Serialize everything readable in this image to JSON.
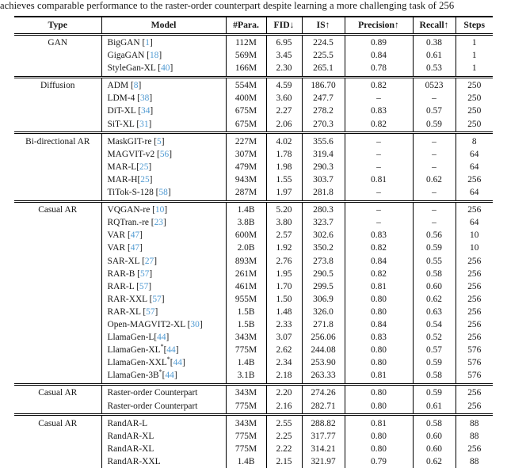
{
  "caption_fragment": "achieves comparable performance to the raster-order counterpart despite learning a more challenging task of 256",
  "colors": {
    "citation": "#4f9ad2",
    "text": "#161616",
    "rule": "#000000"
  },
  "citation_format": {
    "open": "[",
    "close": "]"
  },
  "table": {
    "columns": [
      "Type",
      "Model",
      "#Para.",
      "FID↓",
      "IS↑",
      "Precision↑",
      "Recall↑",
      "Steps"
    ],
    "sections": [
      {
        "type": "GAN",
        "rows": [
          {
            "model": "BigGAN ",
            "cite": "1",
            "para": "112M",
            "fid": "6.95",
            "is": "224.5",
            "prec": "0.89",
            "rec": "0.38",
            "steps": "1"
          },
          {
            "model": "GigaGAN ",
            "cite": "18",
            "para": "569M",
            "fid": "3.45",
            "is": "225.5",
            "prec": "0.84",
            "rec": "0.61",
            "steps": "1"
          },
          {
            "model": "StyleGan-XL ",
            "cite": "40",
            "para": "166M",
            "fid": "2.30",
            "is": "265.1",
            "prec": "0.78",
            "rec": "0.53",
            "steps": "1"
          }
        ]
      },
      {
        "type": "Diffusion",
        "rows": [
          {
            "model": "ADM ",
            "cite": "8",
            "para": "554M",
            "fid": "4.59",
            "is": "186.70",
            "prec": "0.82",
            "rec": "0523",
            "steps": "250"
          },
          {
            "model": "LDM-4 ",
            "cite": "38",
            "para": "400M",
            "fid": "3.60",
            "is": "247.7",
            "prec": "–",
            "rec": "–",
            "steps": "250"
          },
          {
            "model": "DiT-XL ",
            "cite": "34",
            "para": "675M",
            "fid": "2.27",
            "is": "278.2",
            "prec": "0.83",
            "rec": "0.57",
            "steps": "250"
          },
          {
            "model": "SiT-XL ",
            "cite": "31",
            "para": "675M",
            "fid": "2.06",
            "is": "270.3",
            "prec": "0.82",
            "rec": "0.59",
            "steps": "250"
          }
        ]
      },
      {
        "type": "Bi-directional AR",
        "rows": [
          {
            "model": "MaskGIT-re ",
            "cite": "5",
            "para": "227M",
            "fid": "4.02",
            "is": "355.6",
            "prec": "–",
            "rec": "–",
            "steps": "8"
          },
          {
            "model": "MAGVIT-v2 ",
            "cite": "56",
            "para": "307M",
            "fid": "1.78",
            "is": "319.4",
            "prec": "–",
            "rec": "–",
            "steps": "64"
          },
          {
            "model": "MAR-L",
            "cite": "25",
            "para": "479M",
            "fid": "1.98",
            "is": "290.3",
            "prec": "–",
            "rec": "–",
            "steps": "64"
          },
          {
            "model": "MAR-H",
            "cite": "25",
            "para": "943M",
            "fid": "1.55",
            "is": "303.7",
            "prec": "0.81",
            "rec": "0.62",
            "steps": "256"
          },
          {
            "model": "TiTok-S-128 ",
            "cite": "58",
            "para": "287M",
            "fid": "1.97",
            "is": "281.8",
            "prec": "–",
            "rec": "–",
            "steps": "64"
          }
        ]
      },
      {
        "type": "Casual AR",
        "rows": [
          {
            "model": "VQGAN-re ",
            "cite": "10",
            "para": "1.4B",
            "fid": "5.20",
            "is": "280.3",
            "prec": "–",
            "rec": "–",
            "steps": "256"
          },
          {
            "model": "RQTran.-re ",
            "cite": "23",
            "para": "3.8B",
            "fid": "3.80",
            "is": "323.7",
            "prec": "–",
            "rec": "–",
            "steps": "64"
          },
          {
            "model": "VAR ",
            "cite": "47",
            "para": "600M",
            "fid": "2.57",
            "is": "302.6",
            "prec": "0.83",
            "rec": "0.56",
            "steps": "10"
          },
          {
            "model": "VAR ",
            "cite": "47",
            "para": "2.0B",
            "fid": "1.92",
            "is": "350.2",
            "prec": "0.82",
            "rec": "0.59",
            "steps": "10"
          },
          {
            "model": "SAR-XL ",
            "cite": "27",
            "para": "893M",
            "fid": "2.76",
            "is": "273.8",
            "prec": "0.84",
            "rec": "0.55",
            "steps": "256"
          },
          {
            "model": "RAR-B ",
            "cite": "57",
            "para": "261M",
            "fid": "1.95",
            "is": "290.5",
            "prec": "0.82",
            "rec": "0.58",
            "steps": "256"
          },
          {
            "model": "RAR-L ",
            "cite": "57",
            "para": "461M",
            "fid": "1.70",
            "is": "299.5",
            "prec": "0.81",
            "rec": "0.60",
            "steps": "256"
          },
          {
            "model": "RAR-XXL ",
            "cite": "57",
            "para": "955M",
            "fid": "1.50",
            "is": "306.9",
            "prec": "0.80",
            "rec": "0.62",
            "steps": "256"
          },
          {
            "model": "RAR-XL ",
            "cite": "57",
            "para": "1.5B",
            "fid": "1.48",
            "is": "326.0",
            "prec": "0.80",
            "rec": "0.63",
            "steps": "256"
          },
          {
            "model": "Open-MAGVIT2-XL ",
            "cite": "30",
            "para": "1.5B",
            "fid": "2.33",
            "is": "271.8",
            "prec": "0.84",
            "rec": "0.54",
            "steps": "256"
          },
          {
            "model": "LlamaGen-L",
            "cite": "44",
            "para": "343M",
            "fid": "3.07",
            "is": "256.06",
            "prec": "0.83",
            "rec": "0.52",
            "steps": "256"
          },
          {
            "model": "LlamaGen-XL",
            "star": "*",
            "cite": "44",
            "para": "775M",
            "fid": "2.62",
            "is": "244.08",
            "prec": "0.80",
            "rec": "0.57",
            "steps": "576"
          },
          {
            "model": "LlamaGen-XXL",
            "star": "*",
            "cite": "44",
            "para": "1.4B",
            "fid": "2.34",
            "is": "253.90",
            "prec": "0.80",
            "rec": "0.59",
            "steps": "576"
          },
          {
            "model": "LlamaGen-3B",
            "star": "*",
            "cite": "44",
            "para": "3.1B",
            "fid": "2.18",
            "is": "263.33",
            "prec": "0.81",
            "rec": "0.58",
            "steps": "576"
          }
        ]
      },
      {
        "type": "Casual AR",
        "rows": [
          {
            "model": "Raster-order Counterpart",
            "para": "343M",
            "fid": "2.20",
            "is": "274.26",
            "prec": "0.80",
            "rec": "0.59",
            "steps": "256"
          },
          {
            "model": "Raster-order Counterpart",
            "para": "775M",
            "fid": "2.16",
            "is": "282.71",
            "prec": "0.80",
            "rec": "0.61",
            "steps": "256"
          }
        ]
      },
      {
        "type": "Casual AR",
        "rows": [
          {
            "model": "RandAR-L",
            "para": "343M",
            "fid": "2.55",
            "is": "288.82",
            "prec": "0.81",
            "rec": "0.58",
            "steps": "88"
          },
          {
            "model": "RandAR-XL",
            "para": "775M",
            "fid": "2.25",
            "is": "317.77",
            "prec": "0.80",
            "rec": "0.60",
            "steps": "88"
          },
          {
            "model": "RandAR-XL",
            "para": "775M",
            "fid": "2.22",
            "is": "314.21",
            "prec": "0.80",
            "rec": "0.60",
            "steps": "256"
          },
          {
            "model": "RandAR-XXL",
            "para": "1.4B",
            "fid": "2.15",
            "is": "321.97",
            "prec": "0.79",
            "rec": "0.62",
            "steps": "88"
          }
        ]
      }
    ]
  }
}
